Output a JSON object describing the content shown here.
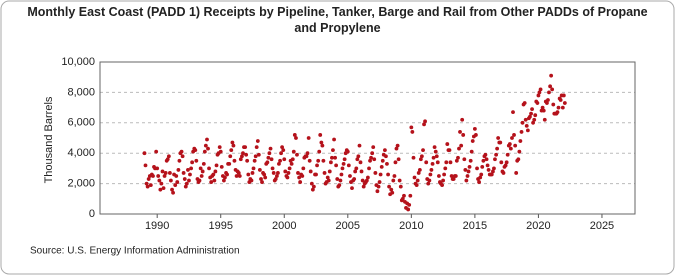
{
  "chart_data": {
    "type": "scatter",
    "title": "Monthly East Coast (PADD 1) Receipts by Pipeline, Tanker, Barge and Rail from Other PADDs of Propane and Propylene",
    "y_label": "Thousand Barrels",
    "source": "Source: U.S. Energy Information Administration",
    "xlim": [
      1985.5,
      2027.6
    ],
    "xticks": [
      1990,
      1995,
      2000,
      2005,
      2010,
      2015,
      2020,
      2025
    ],
    "ylim": [
      0,
      10000
    ],
    "yticks": [
      0,
      {
        "value": 2000,
        "label": "2,000"
      },
      {
        "value": 4000,
        "label": "4,000"
      },
      {
        "value": 6000,
        "label": "6,000"
      },
      {
        "value": 8000,
        "label": "8,000"
      },
      {
        "value": 10000,
        "label": "10,000"
      }
    ],
    "grid": true,
    "color": "#b5121b",
    "x": [
      1989,
      1989.08,
      1989.17,
      1989.25,
      1989.33,
      1989.42,
      1989.5,
      1989.58,
      1989.67,
      1989.75,
      1989.83,
      1989.92,
      1990,
      1990.08,
      1990.17,
      1990.25,
      1990.33,
      1990.42,
      1990.5,
      1990.58,
      1990.67,
      1990.75,
      1990.83,
      1990.92,
      1991,
      1991.08,
      1991.17,
      1991.25,
      1991.33,
      1991.42,
      1991.5,
      1991.58,
      1991.67,
      1991.75,
      1991.83,
      1991.92,
      1992,
      1992.08,
      1992.17,
      1992.25,
      1992.33,
      1992.42,
      1992.5,
      1992.58,
      1992.67,
      1992.75,
      1992.83,
      1992.92,
      1993,
      1993.08,
      1993.17,
      1993.25,
      1993.33,
      1993.42,
      1993.5,
      1993.58,
      1993.67,
      1993.75,
      1993.83,
      1993.92,
      1994,
      1994.08,
      1994.17,
      1994.25,
      1994.33,
      1994.42,
      1994.5,
      1994.58,
      1994.67,
      1994.75,
      1994.83,
      1994.92,
      1995,
      1995.08,
      1995.17,
      1995.25,
      1995.33,
      1995.42,
      1995.5,
      1995.58,
      1995.67,
      1995.75,
      1995.83,
      1995.92,
      1996,
      1996.08,
      1996.17,
      1996.25,
      1996.33,
      1996.42,
      1996.5,
      1996.58,
      1996.67,
      1996.75,
      1996.83,
      1996.92,
      1997,
      1997.08,
      1997.17,
      1997.25,
      1997.33,
      1997.42,
      1997.5,
      1997.58,
      1997.67,
      1997.75,
      1997.83,
      1997.92,
      1998,
      1998.08,
      1998.17,
      1998.25,
      1998.33,
      1998.42,
      1998.5,
      1998.58,
      1998.67,
      1998.75,
      1998.83,
      1998.92,
      1999,
      1999.08,
      1999.17,
      1999.25,
      1999.33,
      1999.42,
      1999.5,
      1999.58,
      1999.67,
      1999.75,
      1999.83,
      1999.92,
      2000,
      2000.08,
      2000.17,
      2000.25,
      2000.33,
      2000.42,
      2000.5,
      2000.58,
      2000.67,
      2000.75,
      2000.83,
      2000.92,
      2001,
      2001.08,
      2001.17,
      2001.25,
      2001.33,
      2001.42,
      2001.5,
      2001.58,
      2001.67,
      2001.75,
      2001.83,
      2001.92,
      2002,
      2002.08,
      2002.17,
      2002.25,
      2002.33,
      2002.42,
      2002.5,
      2002.58,
      2002.67,
      2002.75,
      2002.83,
      2002.92,
      2003,
      2003.08,
      2003.17,
      2003.25,
      2003.33,
      2003.42,
      2003.5,
      2003.58,
      2003.67,
      2003.75,
      2003.83,
      2003.92,
      2004,
      2004.08,
      2004.17,
      2004.25,
      2004.33,
      2004.42,
      2004.5,
      2004.58,
      2004.67,
      2004.75,
      2004.83,
      2004.92,
      2005,
      2005.08,
      2005.17,
      2005.25,
      2005.33,
      2005.42,
      2005.5,
      2005.58,
      2005.67,
      2005.75,
      2005.83,
      2005.92,
      2006,
      2006.08,
      2006.17,
      2006.25,
      2006.33,
      2006.42,
      2006.5,
      2006.58,
      2006.67,
      2006.75,
      2006.83,
      2006.92,
      2007,
      2007.08,
      2007.17,
      2007.25,
      2007.33,
      2007.42,
      2007.5,
      2007.58,
      2007.67,
      2007.75,
      2007.83,
      2007.92,
      2008,
      2008.08,
      2008.17,
      2008.25,
      2008.33,
      2008.42,
      2008.5,
      2008.58,
      2008.67,
      2008.75,
      2008.83,
      2008.92,
      2009,
      2009.08,
      2009.17,
      2009.25,
      2009.33,
      2009.42,
      2009.5,
      2009.58,
      2009.67,
      2009.75,
      2009.83,
      2009.92,
      2010,
      2010.08,
      2010.17,
      2010.25,
      2010.33,
      2010.42,
      2010.5,
      2010.58,
      2010.67,
      2010.75,
      2010.83,
      2010.92,
      2011,
      2011.08,
      2011.17,
      2011.25,
      2011.33,
      2011.42,
      2011.5,
      2011.58,
      2011.67,
      2011.75,
      2011.83,
      2011.92,
      2012,
      2012.08,
      2012.17,
      2012.25,
      2012.33,
      2012.42,
      2012.5,
      2012.58,
      2012.67,
      2012.75,
      2012.83,
      2012.92,
      2013,
      2013.08,
      2013.17,
      2013.25,
      2013.33,
      2013.42,
      2013.5,
      2013.58,
      2013.67,
      2013.75,
      2013.83,
      2013.92,
      2014,
      2014.08,
      2014.17,
      2014.25,
      2014.33,
      2014.42,
      2014.5,
      2014.58,
      2014.67,
      2014.75,
      2014.83,
      2014.92,
      2015,
      2015.08,
      2015.17,
      2015.25,
      2015.33,
      2015.42,
      2015.5,
      2015.58,
      2015.67,
      2015.75,
      2015.83,
      2015.92,
      2016,
      2016.08,
      2016.17,
      2016.25,
      2016.33,
      2016.42,
      2016.5,
      2016.58,
      2016.67,
      2016.75,
      2016.83,
      2016.92,
      2017,
      2017.08,
      2017.17,
      2017.25,
      2017.33,
      2017.42,
      2017.5,
      2017.58,
      2017.67,
      2017.75,
      2017.83,
      2017.92,
      2018,
      2018.08,
      2018.17,
      2018.25,
      2018.33,
      2018.42,
      2018.5,
      2018.58,
      2018.67,
      2018.75,
      2018.83,
      2018.92,
      2019,
      2019.08,
      2019.17,
      2019.25,
      2019.33,
      2019.42,
      2019.5,
      2019.58,
      2019.67,
      2019.75,
      2019.83,
      2019.92,
      2020,
      2020.08,
      2020.17,
      2020.25,
      2020.33,
      2020.42,
      2020.5,
      2020.58,
      2020.67,
      2020.75,
      2020.83,
      2020.92,
      2021,
      2021.08,
      2021.17,
      2021.25,
      2021.33,
      2021.42,
      2021.5,
      2021.58,
      2021.67,
      2021.75,
      2021.83,
      2021.92,
      2022,
      2022.08
    ],
    "values": [
      4000,
      3200,
      2000,
      1800,
      2300,
      2500,
      1900,
      2600,
      2500,
      3100,
      3000,
      4100,
      3000,
      2500,
      2200,
      1600,
      2000,
      2800,
      1700,
      2500,
      2700,
      3500,
      3600,
      3800,
      2700,
      2200,
      1600,
      1400,
      2600,
      1900,
      2500,
      2100,
      2900,
      3500,
      4000,
      4100,
      3800,
      2700,
      2300,
      1800,
      2000,
      2900,
      2200,
      2600,
      3000,
      3400,
      4100,
      4300,
      4200,
      3500,
      2300,
      2100,
      2200,
      3000,
      2500,
      2800,
      3300,
      4100,
      4500,
      4900,
      4300,
      3000,
      2400,
      2100,
      2500,
      2600,
      2200,
      2800,
      3200,
      3900,
      4000,
      4400,
      4100,
      3100,
      2500,
      2200,
      2400,
      2700,
      2600,
      3300,
      3300,
      3800,
      4200,
      4700,
      4500,
      3500,
      2900,
      2500,
      2800,
      2700,
      2500,
      3600,
      3800,
      4000,
      4400,
      4400,
      3900,
      3500,
      2600,
      2100,
      2300,
      2200,
      2700,
      3000,
      3500,
      3800,
      4400,
      4800,
      3900,
      2900,
      2300,
      2100,
      2700,
      2600,
      2400,
      3300,
      3400,
      3700,
      4000,
      4300,
      3600,
      3000,
      2700,
      2200,
      2300,
      2500,
      2700,
      3300,
      3500,
      4000,
      4400,
      4200,
      3600,
      2800,
      2500,
      2400,
      2700,
      3000,
      3500,
      3300,
      3600,
      4100,
      5200,
      5000,
      3900,
      2700,
      2400,
      2100,
      2600,
      2500,
      3000,
      3700,
      3800,
      3800,
      4000,
      5000,
      3500,
      2800,
      2000,
      1600,
      1800,
      2600,
      2600,
      3200,
      3500,
      4100,
      5200,
      4700,
      4500,
      3500,
      2700,
      2000,
      2100,
      2400,
      2200,
      2800,
      3400,
      3700,
      4200,
      4900,
      3700,
      3200,
      2300,
      1800,
      1900,
      2200,
      2600,
      3000,
      3300,
      3600,
      4000,
      4200,
      4100,
      3200,
      2500,
      2100,
      1700,
      2200,
      2300,
      2800,
      3000,
      3600,
      3800,
      4500,
      3400,
      2800,
      2200,
      1800,
      2000,
      2100,
      2200,
      2400,
      3000,
      3500,
      3700,
      4000,
      4400,
      3600,
      2700,
      1900,
      1500,
      1800,
      2100,
      2600,
      3100,
      3500,
      3900,
      4200,
      3800,
      3300,
      2600,
      1800,
      1300,
      1600,
      1400,
      2200,
      2500,
      3400,
      4300,
      4500,
      3600,
      2200,
      1800,
      900,
      1000,
      1200,
      800,
      400,
      700,
      300,
      600,
      1200,
      5700,
      5400,
      3700,
      2400,
      2000,
      1900,
      2200,
      2700,
      2900,
      3600,
      3800,
      4200,
      5900,
      6100,
      3400,
      2300,
      2000,
      2200,
      2600,
      2900,
      3300,
      3700,
      4400,
      4100,
      3800,
      3400,
      2500,
      2100,
      2000,
      1900,
      2200,
      2600,
      3000,
      3400,
      4600,
      4200,
      4200,
      3400,
      2500,
      2300,
      2300,
      2500,
      2500,
      3500,
      3700,
      4300,
      5400,
      4500,
      6200,
      5200,
      3600,
      2900,
      2200,
      2500,
      2800,
      3100,
      3500,
      4100,
      4800,
      5100,
      5600,
      5200,
      3000,
      2300,
      2100,
      2400,
      2600,
      3100,
      3500,
      3800,
      3900,
      3600,
      3200,
      2900,
      2600,
      2600,
      2600,
      2800,
      3000,
      3600,
      3900,
      4300,
      5000,
      4700,
      4700,
      3400,
      2800,
      2700,
      3100,
      3200,
      3400,
      3900,
      4500,
      4600,
      4300,
      5000,
      6700,
      5200,
      4500,
      2700,
      3500,
      3600,
      4100,
      4800,
      5400,
      6000,
      7200,
      7300,
      6200,
      5800,
      5500,
      6300,
      6400,
      6600,
      6900,
      6000,
      6200,
      6500,
      7400,
      7300,
      7800,
      8000,
      8200,
      6800,
      7000,
      6800,
      6200,
      7400,
      7300,
      7500,
      8000,
      8400,
      9100,
      8200,
      7200,
      6600,
      6600,
      6600,
      6700,
      7000,
      7600,
      7500,
      7800,
      7000,
      7800,
      7300
    ]
  }
}
